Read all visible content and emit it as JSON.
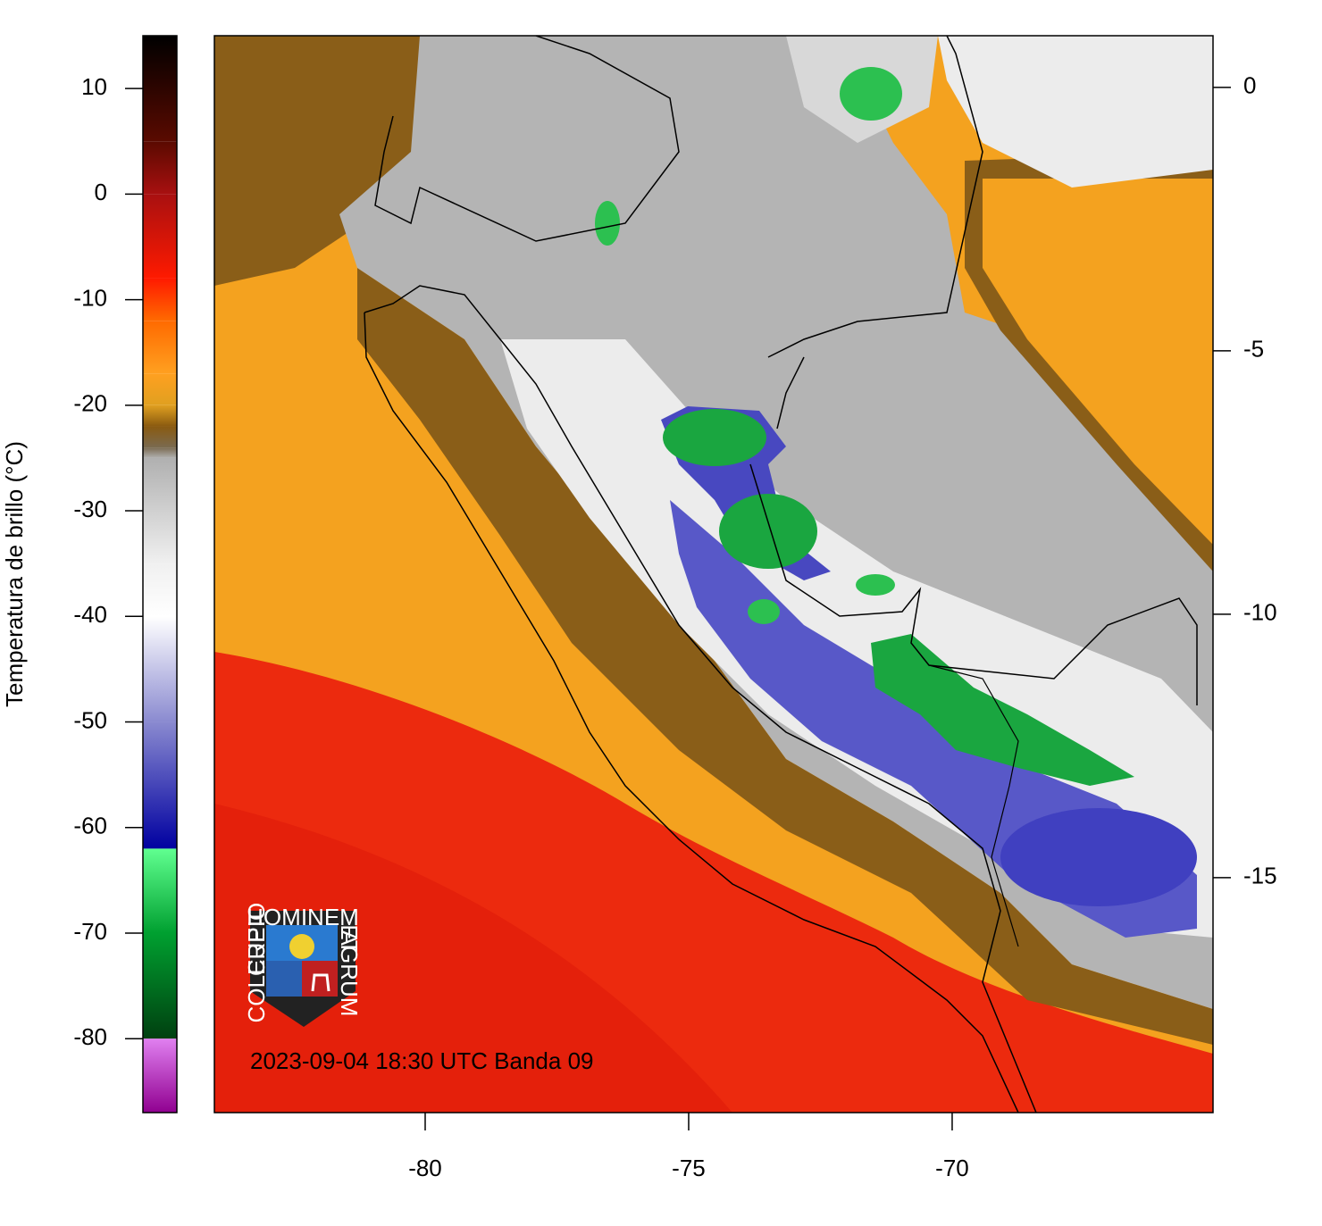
{
  "colorbar": {
    "label": "Temperatura de brillo (°C)",
    "lim": [
      -87,
      15
    ],
    "ticks": [
      10,
      0,
      -10,
      -20,
      -30,
      -40,
      -50,
      -60,
      -70,
      -80
    ],
    "stops": [
      {
        "value": 15,
        "color": "#000000"
      },
      {
        "value": 5,
        "color": "#5a0a00"
      },
      {
        "value": 0,
        "color": "#a81010"
      },
      {
        "value": -8,
        "color": "#ff1a00"
      },
      {
        "value": -12,
        "color": "#ff6a00"
      },
      {
        "value": -17,
        "color": "#ffa020"
      },
      {
        "value": -20,
        "color": "#e0a020"
      },
      {
        "value": -22,
        "color": "#8a5a10"
      },
      {
        "value": -24,
        "color": "#7a6a50"
      },
      {
        "value": -25,
        "color": "#b0b0b0"
      },
      {
        "value": -35,
        "color": "#f0f0f0"
      },
      {
        "value": -40,
        "color": "#ffffff"
      },
      {
        "value": -50,
        "color": "#8a8ad0"
      },
      {
        "value": -62,
        "color": "#0000a0"
      },
      {
        "value": -62,
        "color": "#60ff90"
      },
      {
        "value": -70,
        "color": "#00a030"
      },
      {
        "value": -80,
        "color": "#004010"
      },
      {
        "value": -80,
        "color": "#e080f0"
      },
      {
        "value": -87,
        "color": "#900090"
      }
    ]
  },
  "map": {
    "xlim": [
      -84,
      -65.05
    ],
    "ylim": [
      -19.46,
      0.98
    ],
    "xticks": [
      -80,
      -75,
      -70
    ],
    "yticks": [
      0,
      -5,
      -10,
      -15
    ],
    "annotation": "2023-09-04 18:30 UTC Banda 09"
  },
  "logo": {
    "texts": [
      "HOMINEM",
      "CUPIO",
      "COLERE",
      "ET",
      "AGRUM"
    ]
  }
}
